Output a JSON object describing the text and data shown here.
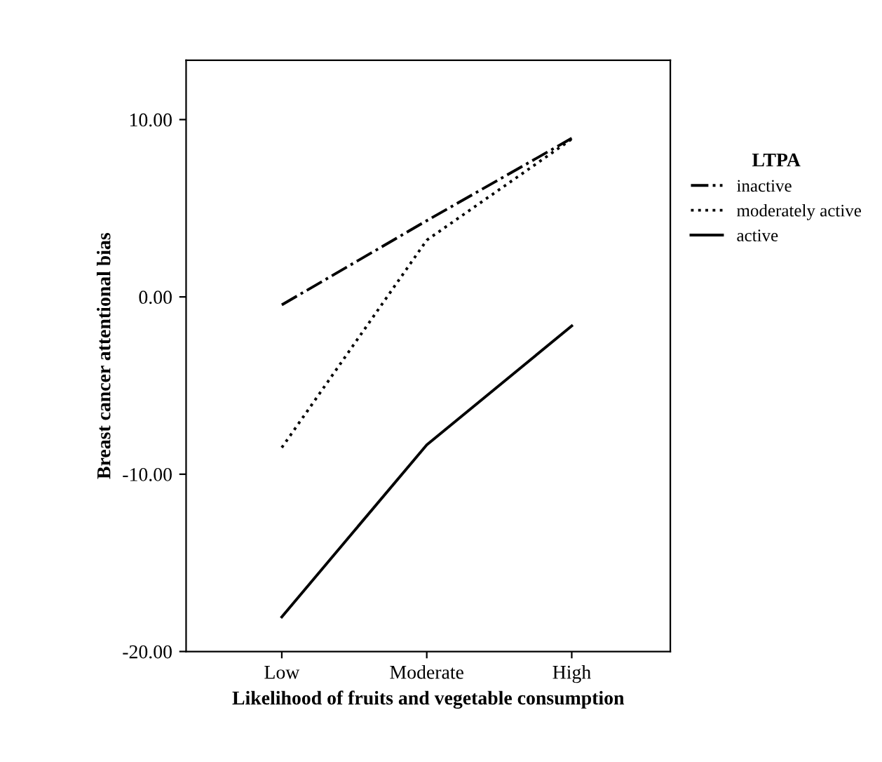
{
  "chart_data": {
    "type": "line",
    "xlabel": "Likelihood of fruits and vegetable consumption",
    "ylabel": "Breast cancer attentional bias",
    "legend_title": "LTPA",
    "legend": "top right",
    "categories": [
      "Low",
      "Moderate",
      "High"
    ],
    "series": [
      {
        "name": "inactive",
        "color": "#000000",
        "line_style": "dashdot",
        "values": [
          -0.45,
          4.3,
          8.95
        ]
      },
      {
        "name": "moderately active",
        "color": "#000000",
        "line_style": "dotted",
        "values": [
          -8.5,
          3.2,
          8.9
        ]
      },
      {
        "name": "active",
        "color": "#000000",
        "line_style": "solid",
        "values": [
          -18.05,
          -8.34,
          -1.64
        ]
      }
    ],
    "ylim": [
      -20,
      13.35
    ],
    "yticks": [
      {
        "value": -20,
        "label": "-20.00"
      },
      {
        "value": -10,
        "label": "-10.00"
      },
      {
        "value": 0,
        "label": "0.00"
      },
      {
        "value": 10,
        "label": "10.00"
      }
    ],
    "grid": false,
    "marker": "none"
  }
}
